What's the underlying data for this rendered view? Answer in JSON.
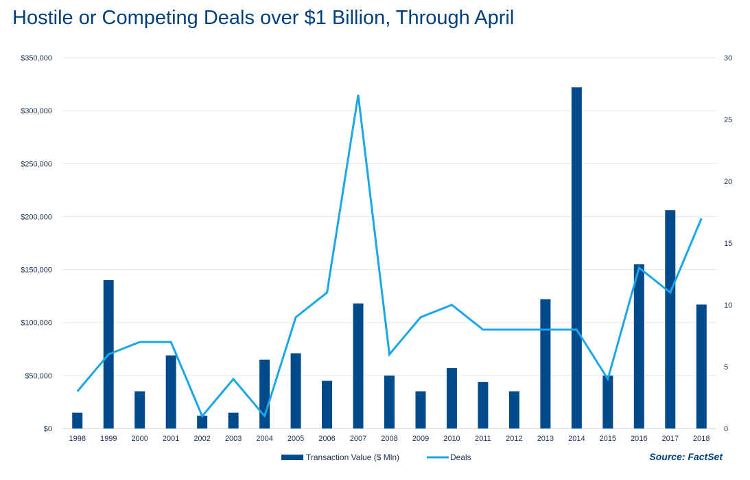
{
  "title": "Hostile or Competing Deals over $1 Billion, Through April",
  "source": "Source: FactSet",
  "colors": {
    "bar": "#034a8c",
    "line": "#1aa7e8",
    "grid": "#dceaf5",
    "title": "#003f7d"
  },
  "chart_data": {
    "type": "bar",
    "categories": [
      "1998",
      "1999",
      "2000",
      "2001",
      "2002",
      "2003",
      "2004",
      "2005",
      "2006",
      "2007",
      "2008",
      "2009",
      "2010",
      "2011",
      "2012",
      "2013",
      "2014",
      "2015",
      "2016",
      "2017",
      "2018"
    ],
    "series": [
      {
        "name": "Transaction Value ($ Mln)",
        "type": "bar",
        "axis": "left",
        "values": [
          15000,
          140000,
          35000,
          69000,
          12000,
          15000,
          65000,
          71000,
          45000,
          118000,
          50000,
          35000,
          57000,
          44000,
          35000,
          122000,
          322000,
          50000,
          155000,
          206000,
          117000
        ]
      },
      {
        "name": "Deals",
        "type": "line",
        "axis": "right",
        "values": [
          3,
          6,
          7,
          7,
          1,
          4,
          1,
          9,
          11,
          27,
          6,
          9,
          10,
          8,
          8,
          8,
          8,
          4,
          13,
          11,
          17
        ]
      }
    ],
    "ylim": [
      0,
      350000
    ],
    "y_ticks": [
      "$0",
      "$50,000",
      "$100,000",
      "$150,000",
      "$200,000",
      "$250,000",
      "$300,000",
      "$350,000"
    ],
    "y2lim": [
      0,
      30
    ],
    "y2_ticks": [
      "0",
      "5",
      "10",
      "15",
      "20",
      "25",
      "30"
    ],
    "grid": true,
    "legend": "bottom"
  }
}
